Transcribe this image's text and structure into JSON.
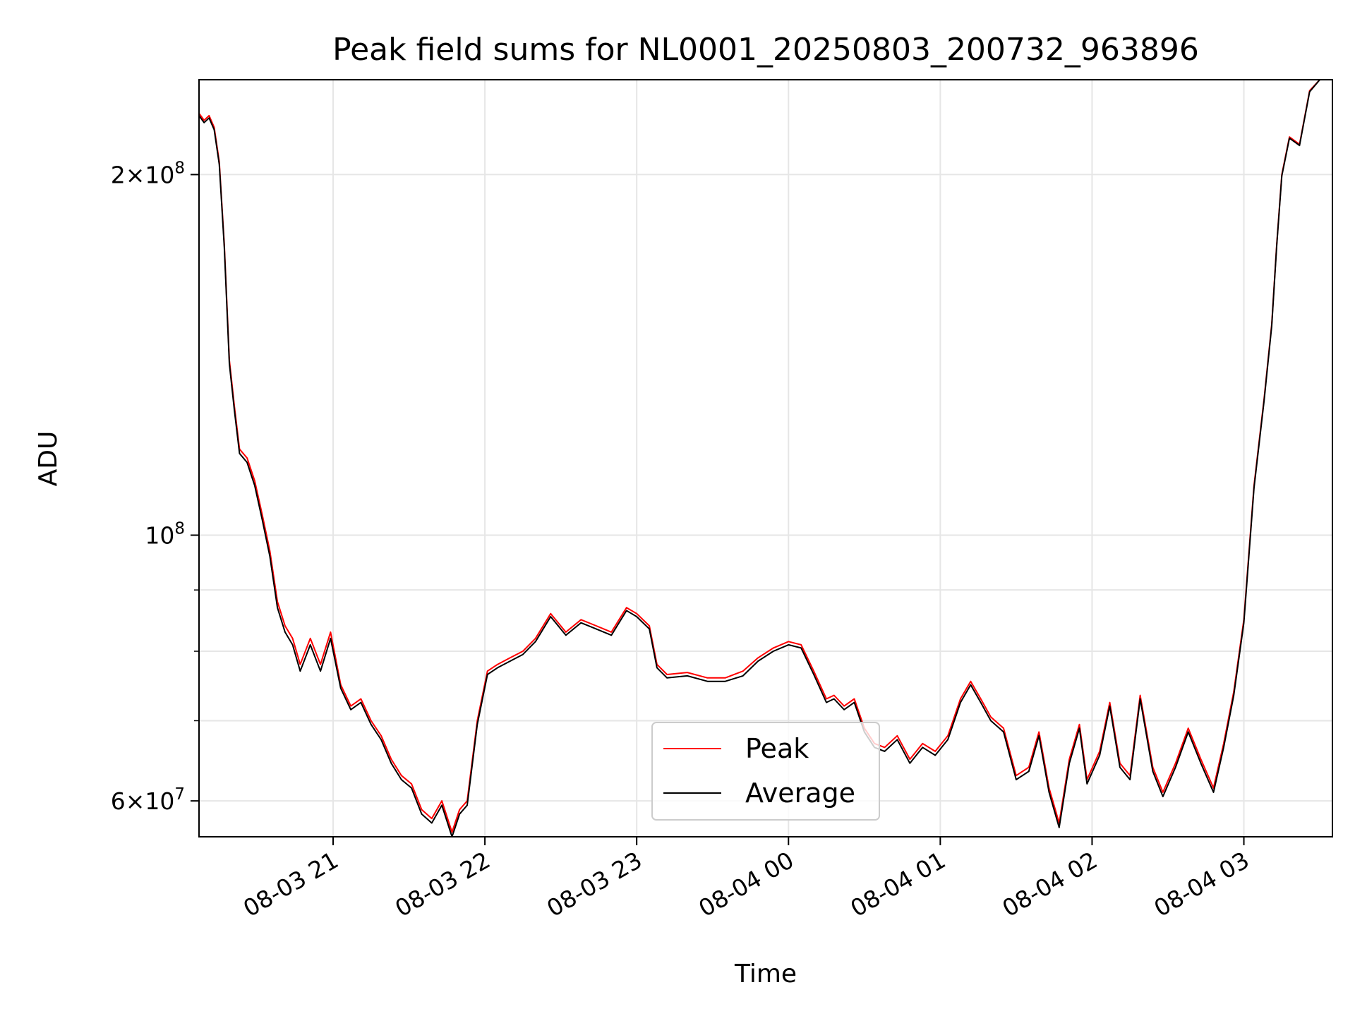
{
  "chart_data": {
    "type": "line",
    "title": "Peak field sums for NL0001_20250803_200732_963896",
    "xlabel": "Time",
    "ylabel": "ADU",
    "xlim": [
      "2025-08-03 20:07",
      "2025-08-04 03:35"
    ],
    "ylim": [
      56000000,
      240000000
    ],
    "yscale": "log",
    "grid": true,
    "legend_position": "lower-center",
    "x_ticks": [
      "08-03 21",
      "08-03 22",
      "08-03 23",
      "08-04 00",
      "08-04 01",
      "08-04 02",
      "08-04 03"
    ],
    "x_tick_times": [
      "2025-08-03 21:00",
      "2025-08-03 22:00",
      "2025-08-03 23:00",
      "2025-08-04 00:00",
      "2025-08-04 01:00",
      "2025-08-04 02:00",
      "2025-08-04 03:00"
    ],
    "y_ticks": [
      {
        "value": 60000000,
        "mantissa": "6",
        "exponent": "7"
      },
      {
        "value": 100000000,
        "mantissa": "",
        "exponent": "8"
      },
      {
        "value": 200000000,
        "mantissa": "2",
        "exponent": "8"
      }
    ],
    "y_minor_ticks": [
      70000000,
      80000000,
      90000000
    ],
    "x": [
      "2025-08-03 20:07",
      "2025-08-03 20:09",
      "2025-08-03 20:11",
      "2025-08-03 20:13",
      "2025-08-03 20:15",
      "2025-08-03 20:17",
      "2025-08-03 20:19",
      "2025-08-03 20:21",
      "2025-08-03 20:23",
      "2025-08-03 20:26",
      "2025-08-03 20:29",
      "2025-08-03 20:32",
      "2025-08-03 20:35",
      "2025-08-03 20:38",
      "2025-08-03 20:41",
      "2025-08-03 20:44",
      "2025-08-03 20:47",
      "2025-08-03 20:51",
      "2025-08-03 20:55",
      "2025-08-03 20:59",
      "2025-08-03 21:03",
      "2025-08-03 21:07",
      "2025-08-03 21:11",
      "2025-08-03 21:15",
      "2025-08-03 21:19",
      "2025-08-03 21:23",
      "2025-08-03 21:27",
      "2025-08-03 21:31",
      "2025-08-03 21:35",
      "2025-08-03 21:39",
      "2025-08-03 21:43",
      "2025-08-03 21:47",
      "2025-08-03 21:50",
      "2025-08-03 21:53",
      "2025-08-03 21:57",
      "2025-08-03 22:01",
      "2025-08-03 22:05",
      "2025-08-03 22:10",
      "2025-08-03 22:15",
      "2025-08-03 22:20",
      "2025-08-03 22:26",
      "2025-08-03 22:32",
      "2025-08-03 22:38",
      "2025-08-03 22:44",
      "2025-08-03 22:50",
      "2025-08-03 22:56",
      "2025-08-03 23:00",
      "2025-08-03 23:05",
      "2025-08-03 23:08",
      "2025-08-03 23:12",
      "2025-08-03 23:20",
      "2025-08-03 23:28",
      "2025-08-03 23:35",
      "2025-08-03 23:42",
      "2025-08-03 23:48",
      "2025-08-03 23:54",
      "2025-08-04 00:00",
      "2025-08-04 00:05",
      "2025-08-04 00:10",
      "2025-08-04 00:15",
      "2025-08-04 00:18",
      "2025-08-04 00:22",
      "2025-08-04 00:26",
      "2025-08-04 00:30",
      "2025-08-04 00:34",
      "2025-08-04 00:38",
      "2025-08-04 00:43",
      "2025-08-04 00:48",
      "2025-08-04 00:53",
      "2025-08-04 00:58",
      "2025-08-04 01:03",
      "2025-08-04 01:08",
      "2025-08-04 01:12",
      "2025-08-04 01:16",
      "2025-08-04 01:20",
      "2025-08-04 01:25",
      "2025-08-04 01:30",
      "2025-08-04 01:35",
      "2025-08-04 01:39",
      "2025-08-04 01:43",
      "2025-08-04 01:47",
      "2025-08-04 01:51",
      "2025-08-04 01:55",
      "2025-08-04 01:58",
      "2025-08-04 02:03",
      "2025-08-04 02:07",
      "2025-08-04 02:11",
      "2025-08-04 02:15",
      "2025-08-04 02:19",
      "2025-08-04 02:24",
      "2025-08-04 02:28",
      "2025-08-04 02:33",
      "2025-08-04 02:38",
      "2025-08-04 02:43",
      "2025-08-04 02:48",
      "2025-08-04 02:52",
      "2025-08-04 02:56",
      "2025-08-04 03:00",
      "2025-08-04 03:04",
      "2025-08-04 03:08",
      "2025-08-04 03:11",
      "2025-08-04 03:13",
      "2025-08-04 03:15",
      "2025-08-04 03:18",
      "2025-08-04 03:22",
      "2025-08-04 03:26",
      "2025-08-04 03:30",
      "2025-08-04 03:35"
    ],
    "series": [
      {
        "name": "Peak",
        "color": "#ff0000",
        "values": [
          225000000,
          222000000,
          224000000,
          219000000,
          205000000,
          175000000,
          140000000,
          128000000,
          118000000,
          116000000,
          111000000,
          104000000,
          97000000,
          88000000,
          84000000,
          82000000,
          78000000,
          82000000,
          78000000,
          83000000,
          75000000,
          72000000,
          73000000,
          70000000,
          68000000,
          65000000,
          63000000,
          62000000,
          59000000,
          58000000,
          60000000,
          56500000,
          59000000,
          60000000,
          70000000,
          77000000,
          78000000,
          79000000,
          80000000,
          82000000,
          86000000,
          83000000,
          85000000,
          84000000,
          83000000,
          87000000,
          86000000,
          84000000,
          78000000,
          76500000,
          76800000,
          76000000,
          76000000,
          77000000,
          79000000,
          80500000,
          81500000,
          81000000,
          77000000,
          73000000,
          73500000,
          72000000,
          73000000,
          69000000,
          67000000,
          66500000,
          68000000,
          65000000,
          67000000,
          66000000,
          68000000,
          73000000,
          75500000,
          73000000,
          70500000,
          69000000,
          63000000,
          64000000,
          68500000,
          61500000,
          57500000,
          65000000,
          69500000,
          62500000,
          66000000,
          72500000,
          64500000,
          63000000,
          73500000,
          64000000,
          61000000,
          64500000,
          69000000,
          65000000,
          61500000,
          67000000,
          74000000,
          85000000,
          110000000,
          130000000,
          150000000,
          175000000,
          200000000,
          215000000,
          212000000,
          235000000,
          240000000,
          240000000
        ]
      },
      {
        "name": "Average",
        "color": "#000000",
        "values": [
          224000000,
          221000000,
          223000000,
          218000000,
          204000000,
          174000000,
          139000000,
          127000000,
          117000000,
          115000000,
          110000000,
          103000000,
          96000000,
          87000000,
          83000000,
          81000000,
          77000000,
          81000000,
          77000000,
          82000000,
          74500000,
          71500000,
          72500000,
          69500000,
          67500000,
          64500000,
          62500000,
          61500000,
          58500000,
          57500000,
          59500000,
          56000000,
          58500000,
          59500000,
          69500000,
          76500000,
          77500000,
          78500000,
          79500000,
          81500000,
          85500000,
          82500000,
          84500000,
          83500000,
          82500000,
          86500000,
          85500000,
          83500000,
          77500000,
          76000000,
          76300000,
          75500000,
          75500000,
          76300000,
          78500000,
          80000000,
          81000000,
          80500000,
          76500000,
          72500000,
          73000000,
          71500000,
          72500000,
          68500000,
          66500000,
          66000000,
          67500000,
          64500000,
          66500000,
          65500000,
          67500000,
          72500000,
          75000000,
          72500000,
          70000000,
          68500000,
          62500000,
          63500000,
          68000000,
          61000000,
          57000000,
          64500000,
          69000000,
          62000000,
          65500000,
          72000000,
          64000000,
          62500000,
          73000000,
          63500000,
          60500000,
          64000000,
          68500000,
          64500000,
          61000000,
          66500000,
          73500000,
          84500000,
          109500000,
          129500000,
          149500000,
          174500000,
          199500000,
          214500000,
          211500000,
          234500000,
          240000000,
          240000000
        ]
      }
    ]
  }
}
